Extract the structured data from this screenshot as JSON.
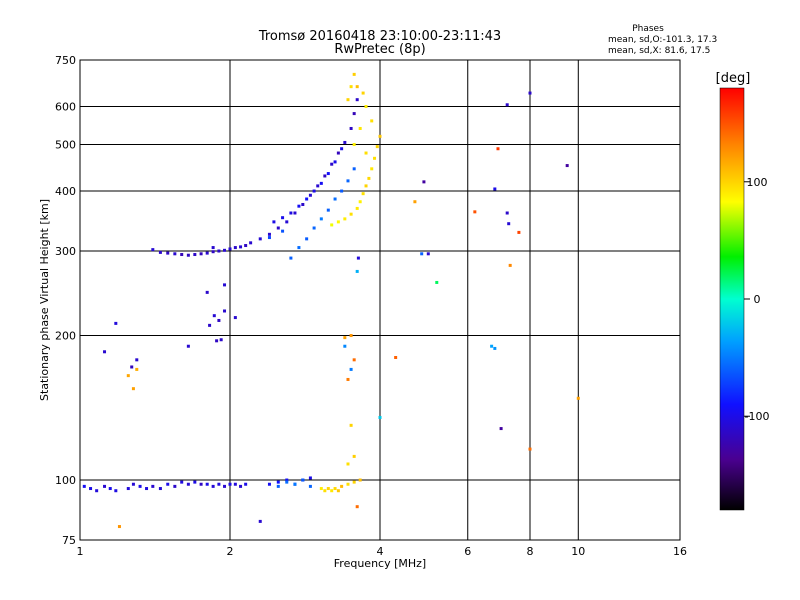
{
  "chart_data": {
    "type": "scatter",
    "title": "Tromsø 20160418 23:10:00-23:11:43",
    "subtitle": "RwPretec (8p)",
    "xlabel": "Frequency [MHz]",
    "ylabel": "Stationary phase Virtual Height [km]",
    "x_scale": "log",
    "y_scale": "log",
    "xlim": [
      1,
      16
    ],
    "ylim": [
      75,
      750
    ],
    "x_ticks": [
      1,
      2,
      4,
      6,
      8,
      10,
      16
    ],
    "y_ticks": [
      75,
      100,
      200,
      300,
      400,
      500,
      600,
      750
    ],
    "x_grid": [
      2,
      4,
      6,
      8,
      10
    ],
    "y_grid": [
      100,
      200,
      300,
      400,
      500,
      600
    ],
    "grid": true,
    "legend": {
      "title": "Phases",
      "lines": [
        "mean, sd,O:-101.3, 17.3",
        "mean, sd,X:  81.6, 17.5"
      ]
    },
    "colorbar": {
      "label": "[deg]",
      "range": [
        -180,
        180
      ],
      "ticks": [
        100,
        0,
        -100
      ],
      "colormap": "rainbow"
    },
    "series": [
      {
        "points": [
          [
            1.02,
            97,
            -95
          ],
          [
            1.05,
            96,
            -100
          ],
          [
            1.08,
            95,
            -105
          ],
          [
            1.12,
            97,
            -110
          ],
          [
            1.15,
            96,
            -98
          ],
          [
            1.18,
            95,
            -102
          ],
          [
            1.25,
            96,
            -105
          ],
          [
            1.28,
            98,
            -108
          ],
          [
            1.32,
            97,
            -100
          ],
          [
            1.36,
            96,
            -103
          ],
          [
            1.4,
            97,
            -110
          ],
          [
            1.45,
            96,
            -106
          ],
          [
            1.5,
            98,
            -100
          ],
          [
            1.55,
            97,
            -112
          ],
          [
            1.6,
            99,
            -104
          ],
          [
            1.65,
            98,
            -108
          ],
          [
            1.7,
            99,
            -101
          ],
          [
            1.75,
            98,
            -115
          ],
          [
            1.8,
            98,
            -100
          ],
          [
            1.85,
            97,
            -107
          ],
          [
            1.9,
            98,
            -103
          ],
          [
            1.95,
            97,
            -110
          ],
          [
            2.0,
            98,
            -100
          ],
          [
            2.05,
            98,
            -105
          ],
          [
            2.1,
            97,
            -108
          ],
          [
            2.15,
            98,
            -100
          ],
          [
            2.4,
            98,
            -95
          ],
          [
            2.5,
            99,
            -90
          ],
          [
            2.6,
            100,
            -92
          ],
          [
            2.7,
            98,
            -88
          ],
          [
            2.8,
            100,
            -95
          ],
          [
            2.9,
            101,
            -100
          ],
          [
            1.4,
            302,
            -108
          ],
          [
            1.45,
            298,
            -112
          ],
          [
            1.5,
            297,
            -115
          ],
          [
            1.55,
            296,
            -110
          ],
          [
            1.6,
            295,
            -120
          ],
          [
            1.65,
            294,
            -116
          ],
          [
            1.7,
            295,
            -113
          ],
          [
            1.75,
            296,
            -118
          ],
          [
            1.8,
            297,
            -111
          ],
          [
            1.85,
            299,
            -115
          ],
          [
            1.9,
            300,
            -112
          ],
          [
            1.95,
            301,
            -110
          ],
          [
            2.0,
            303,
            -108
          ],
          [
            2.05,
            305,
            -112
          ],
          [
            2.1,
            306,
            -109
          ],
          [
            2.15,
            308,
            -115
          ],
          [
            2.2,
            312,
            -110
          ],
          [
            2.3,
            318,
            -108
          ],
          [
            2.4,
            325,
            -110
          ],
          [
            2.5,
            335,
            -113
          ],
          [
            2.6,
            345,
            -108
          ],
          [
            2.7,
            360,
            -110
          ],
          [
            2.8,
            375,
            -112
          ],
          [
            2.9,
            392,
            -108
          ],
          [
            3.0,
            410,
            -110
          ],
          [
            3.1,
            430,
            -115
          ],
          [
            3.2,
            455,
            -112
          ],
          [
            3.3,
            480,
            -118
          ],
          [
            3.4,
            505,
            -110
          ],
          [
            3.5,
            540,
            -114
          ],
          [
            3.55,
            580,
            -120
          ],
          [
            3.6,
            620,
            -112
          ],
          [
            2.45,
            345,
            -100
          ],
          [
            2.55,
            352,
            -98
          ],
          [
            2.65,
            360,
            -102
          ],
          [
            2.75,
            372,
            -95
          ],
          [
            2.85,
            385,
            -90
          ],
          [
            2.95,
            400,
            -100
          ],
          [
            3.05,
            415,
            -95
          ],
          [
            3.15,
            435,
            -92
          ],
          [
            3.25,
            460,
            -98
          ],
          [
            3.35,
            490,
            -100
          ],
          [
            1.82,
            210,
            -112
          ],
          [
            1.86,
            220,
            -108
          ],
          [
            1.9,
            215,
            -115
          ],
          [
            1.95,
            225,
            -110
          ],
          [
            1.88,
            195,
            -115
          ],
          [
            1.92,
            196,
            -112
          ],
          [
            2.05,
            218,
            -110
          ],
          [
            1.85,
            305,
            -110
          ],
          [
            1.8,
            246,
            -112
          ],
          [
            1.95,
            255,
            -108
          ],
          [
            1.12,
            185,
            -110
          ],
          [
            1.18,
            212,
            -105
          ],
          [
            1.3,
            178,
            -110
          ],
          [
            1.27,
            172,
            -118
          ],
          [
            1.65,
            190,
            -110
          ],
          [
            2.3,
            82,
            -110
          ],
          [
            3.62,
            290,
            -105
          ],
          [
            5.0,
            296,
            -110
          ],
          [
            4.9,
            418,
            -130
          ],
          [
            6.8,
            404,
            -100
          ],
          [
            7.2,
            360,
            -112
          ],
          [
            7.25,
            342,
            -108
          ],
          [
            7.2,
            605,
            -112
          ],
          [
            8.0,
            640,
            -112
          ],
          [
            9.5,
            452,
            -130
          ],
          [
            7.0,
            128,
            -130
          ]
        ]
      },
      {
        "points": [
          [
            2.5,
            97,
            -60
          ],
          [
            2.6,
            99,
            -55
          ],
          [
            2.7,
            98,
            -50
          ],
          [
            2.8,
            100,
            -62
          ],
          [
            2.9,
            97,
            -58
          ],
          [
            2.65,
            290,
            -60
          ],
          [
            2.75,
            305,
            -55
          ],
          [
            2.85,
            318,
            -62
          ],
          [
            2.95,
            335,
            -58
          ],
          [
            3.05,
            350,
            -50
          ],
          [
            3.15,
            365,
            -60
          ],
          [
            3.25,
            385,
            -55
          ],
          [
            3.35,
            400,
            -62
          ],
          [
            3.45,
            420,
            -58
          ],
          [
            3.55,
            445,
            -60
          ],
          [
            2.4,
            320,
            -70
          ],
          [
            2.55,
            330,
            -65
          ],
          [
            3.6,
            272,
            -30
          ],
          [
            3.4,
            190,
            -45
          ],
          [
            3.5,
            170,
            -50
          ],
          [
            6.8,
            188,
            -40
          ],
          [
            4.0,
            135,
            -20
          ],
          [
            5.2,
            258,
            20
          ],
          [
            6.7,
            190,
            -35
          ],
          [
            4.85,
            296,
            -60
          ]
        ]
      },
      {
        "points": [
          [
            3.05,
            96,
            90
          ],
          [
            3.1,
            95,
            95
          ],
          [
            3.15,
            96,
            100
          ],
          [
            3.2,
            95,
            92
          ],
          [
            3.25,
            96,
            98
          ],
          [
            3.3,
            95,
            105
          ],
          [
            3.35,
            97,
            110
          ],
          [
            3.45,
            98,
            95
          ],
          [
            3.55,
            99,
            100
          ],
          [
            3.65,
            100,
            108
          ],
          [
            3.2,
            340,
            80
          ],
          [
            3.3,
            345,
            85
          ],
          [
            3.4,
            350,
            90
          ],
          [
            3.5,
            358,
            95
          ],
          [
            3.6,
            368,
            92
          ],
          [
            3.65,
            380,
            88
          ],
          [
            3.7,
            395,
            95
          ],
          [
            3.75,
            410,
            100
          ],
          [
            3.8,
            425,
            98
          ],
          [
            3.85,
            445,
            92
          ],
          [
            3.9,
            468,
            95
          ],
          [
            3.95,
            495,
            100
          ],
          [
            4.0,
            520,
            105
          ],
          [
            3.85,
            560,
            95
          ],
          [
            3.75,
            600,
            90
          ],
          [
            3.7,
            640,
            100
          ],
          [
            3.6,
            660,
            108
          ],
          [
            3.55,
            700,
            102
          ],
          [
            3.5,
            660,
            95
          ],
          [
            3.45,
            620,
            100
          ],
          [
            3.65,
            540,
            92
          ],
          [
            3.55,
            500,
            88
          ],
          [
            3.75,
            480,
            96
          ],
          [
            3.4,
            198,
            120
          ],
          [
            3.5,
            200,
            125
          ],
          [
            3.55,
            178,
            140
          ],
          [
            3.45,
            162,
            135
          ],
          [
            3.5,
            130,
            100
          ],
          [
            3.45,
            108,
            95
          ],
          [
            3.55,
            112,
            102
          ],
          [
            3.6,
            88,
            140
          ],
          [
            1.3,
            170,
            115
          ],
          [
            1.25,
            165,
            118
          ],
          [
            1.28,
            155,
            120
          ],
          [
            1.2,
            80,
            125
          ],
          [
            4.7,
            380,
            120
          ],
          [
            4.3,
            180,
            145
          ],
          [
            6.2,
            362,
            150
          ],
          [
            6.9,
            490,
            160
          ],
          [
            7.3,
            280,
            130
          ],
          [
            7.6,
            328,
            155
          ],
          [
            8.0,
            116,
            140
          ],
          [
            10.0,
            148,
            120
          ]
        ]
      }
    ]
  }
}
